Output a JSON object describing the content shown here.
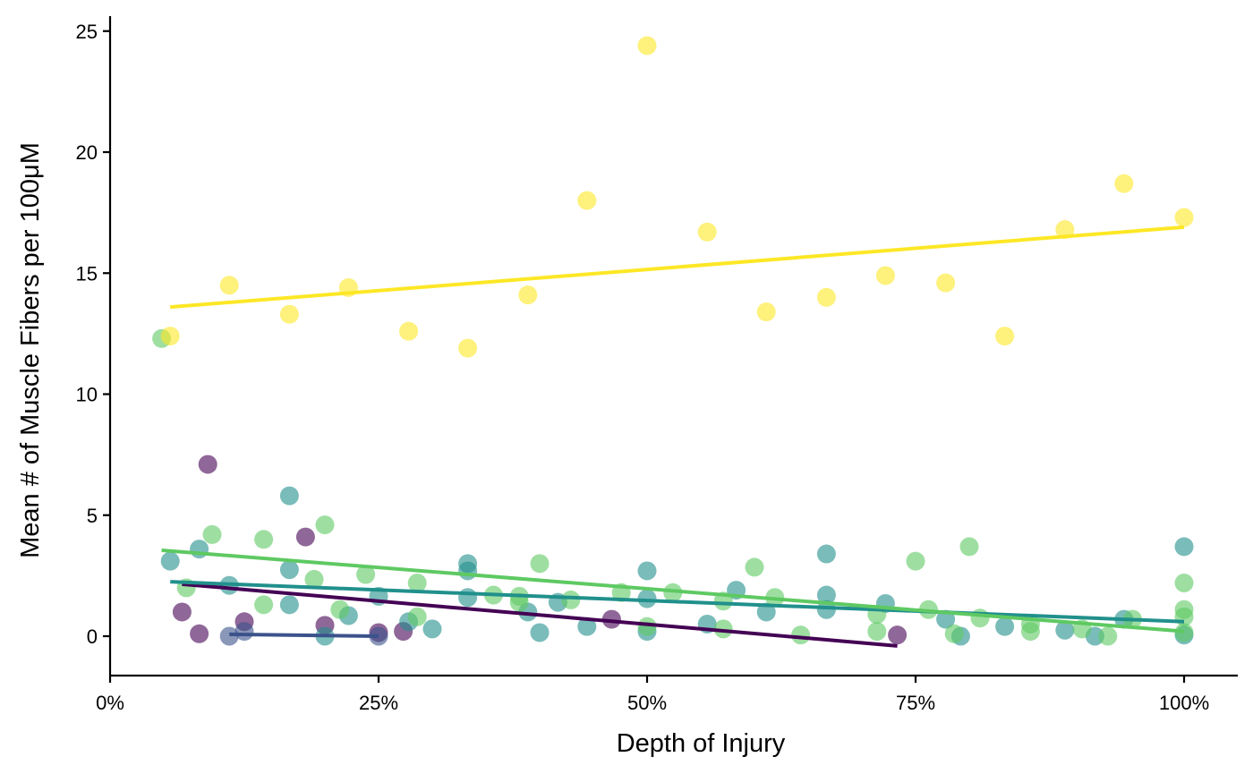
{
  "chart_data": {
    "type": "scatter",
    "title": "",
    "xlabel": "Depth of Injury",
    "ylabel": "Mean # of Muscle Fibers per 100μM",
    "xlim": [
      0,
      1.05
    ],
    "ylim": [
      -1.6,
      25.7
    ],
    "x_ticks": [
      {
        "value": 0,
        "label": "0%"
      },
      {
        "value": 0.25,
        "label": "25%"
      },
      {
        "value": 0.5,
        "label": "50%"
      },
      {
        "value": 0.75,
        "label": "75%"
      },
      {
        "value": 1,
        "label": "100%"
      }
    ],
    "y_ticks": [
      {
        "value": 0,
        "label": "0"
      },
      {
        "value": 5,
        "label": "5"
      },
      {
        "value": 10,
        "label": "10"
      },
      {
        "value": 15,
        "label": "15"
      },
      {
        "value": 20,
        "label": "20"
      },
      {
        "value": 25,
        "label": "25"
      }
    ],
    "grid": false,
    "legend": "none",
    "point_opacity": 0.6,
    "series": [
      {
        "color": "#440154",
        "points": [
          [
            0.067,
            1.0
          ],
          [
            0.083,
            0.1
          ],
          [
            0.091,
            7.1
          ],
          [
            0.125,
            0.6
          ],
          [
            0.182,
            4.1
          ],
          [
            0.2,
            0.45
          ],
          [
            0.25,
            0.15
          ],
          [
            0.273,
            0.2
          ],
          [
            0.467,
            0.7
          ],
          [
            0.733,
            0.05
          ]
        ],
        "trend": [
          [
            0.067,
            2.15
          ],
          [
            0.733,
            -0.4
          ]
        ]
      },
      {
        "color": "#3b528b",
        "points": [
          [
            0.111,
            0.0
          ],
          [
            0.125,
            0.2
          ],
          [
            0.25,
            0.0
          ]
        ],
        "trend": [
          [
            0.111,
            0.08
          ],
          [
            0.25,
            0.0
          ]
        ]
      },
      {
        "color": "#21908c",
        "points": [
          [
            0.056,
            3.1
          ],
          [
            0.083,
            3.6
          ],
          [
            0.111,
            2.1
          ],
          [
            0.167,
            5.8
          ],
          [
            0.167,
            2.75
          ],
          [
            0.167,
            1.3
          ],
          [
            0.2,
            0.0
          ],
          [
            0.222,
            0.85
          ],
          [
            0.25,
            1.65
          ],
          [
            0.278,
            0.6
          ],
          [
            0.3,
            0.3
          ],
          [
            0.333,
            3.0
          ],
          [
            0.333,
            2.7
          ],
          [
            0.333,
            1.6
          ],
          [
            0.389,
            1.0
          ],
          [
            0.4,
            0.15
          ],
          [
            0.417,
            1.4
          ],
          [
            0.444,
            0.4
          ],
          [
            0.5,
            2.7
          ],
          [
            0.5,
            1.55
          ],
          [
            0.5,
            0.2
          ],
          [
            0.556,
            0.5
          ],
          [
            0.583,
            1.9
          ],
          [
            0.611,
            1.0
          ],
          [
            0.667,
            3.4
          ],
          [
            0.667,
            1.7
          ],
          [
            0.667,
            1.1
          ],
          [
            0.722,
            1.35
          ],
          [
            0.778,
            0.7
          ],
          [
            0.792,
            0.0
          ],
          [
            0.833,
            0.4
          ],
          [
            0.889,
            0.25
          ],
          [
            0.917,
            0.0
          ],
          [
            0.944,
            0.7
          ],
          [
            1.0,
            3.7
          ],
          [
            1.0,
            0.05
          ]
        ],
        "trend": [
          [
            0.056,
            2.25
          ],
          [
            1.0,
            0.6
          ]
        ]
      },
      {
        "color": "#5ec962",
        "points": [
          [
            0.048,
            12.3
          ],
          [
            0.071,
            2.0
          ],
          [
            0.095,
            4.2
          ],
          [
            0.143,
            4.0
          ],
          [
            0.143,
            1.3
          ],
          [
            0.19,
            2.35
          ],
          [
            0.2,
            4.6
          ],
          [
            0.214,
            1.1
          ],
          [
            0.238,
            2.55
          ],
          [
            0.286,
            2.2
          ],
          [
            0.286,
            0.8
          ],
          [
            0.357,
            1.7
          ],
          [
            0.381,
            1.4
          ],
          [
            0.381,
            1.65
          ],
          [
            0.4,
            3.0
          ],
          [
            0.429,
            1.5
          ],
          [
            0.476,
            1.8
          ],
          [
            0.5,
            0.4
          ],
          [
            0.524,
            1.8
          ],
          [
            0.571,
            1.45
          ],
          [
            0.571,
            0.3
          ],
          [
            0.6,
            2.85
          ],
          [
            0.619,
            1.6
          ],
          [
            0.643,
            0.05
          ],
          [
            0.714,
            0.9
          ],
          [
            0.714,
            0.2
          ],
          [
            0.75,
            3.1
          ],
          [
            0.762,
            1.1
          ],
          [
            0.786,
            0.1
          ],
          [
            0.8,
            3.7
          ],
          [
            0.81,
            0.75
          ],
          [
            0.857,
            0.5
          ],
          [
            0.857,
            0.2
          ],
          [
            0.905,
            0.3
          ],
          [
            0.929,
            0.0
          ],
          [
            0.952,
            0.7
          ],
          [
            1.0,
            2.2
          ],
          [
            1.0,
            1.1
          ],
          [
            1.0,
            0.8
          ],
          [
            1.0,
            0.15
          ]
        ],
        "trend": [
          [
            0.048,
            3.55
          ],
          [
            1.0,
            0.2
          ]
        ]
      },
      {
        "color": "#fde725",
        "points": [
          [
            0.056,
            12.4
          ],
          [
            0.111,
            14.5
          ],
          [
            0.167,
            13.3
          ],
          [
            0.222,
            14.4
          ],
          [
            0.278,
            12.6
          ],
          [
            0.333,
            11.9
          ],
          [
            0.389,
            14.1
          ],
          [
            0.444,
            18.0
          ],
          [
            0.5,
            24.4
          ],
          [
            0.556,
            16.7
          ],
          [
            0.611,
            13.4
          ],
          [
            0.667,
            14.0
          ],
          [
            0.722,
            14.9
          ],
          [
            0.778,
            14.6
          ],
          [
            0.833,
            12.4
          ],
          [
            0.889,
            16.8
          ],
          [
            0.944,
            18.7
          ],
          [
            1.0,
            17.3
          ]
        ],
        "trend": [
          [
            0.056,
            13.6
          ],
          [
            1.0,
            16.9
          ]
        ]
      }
    ]
  }
}
